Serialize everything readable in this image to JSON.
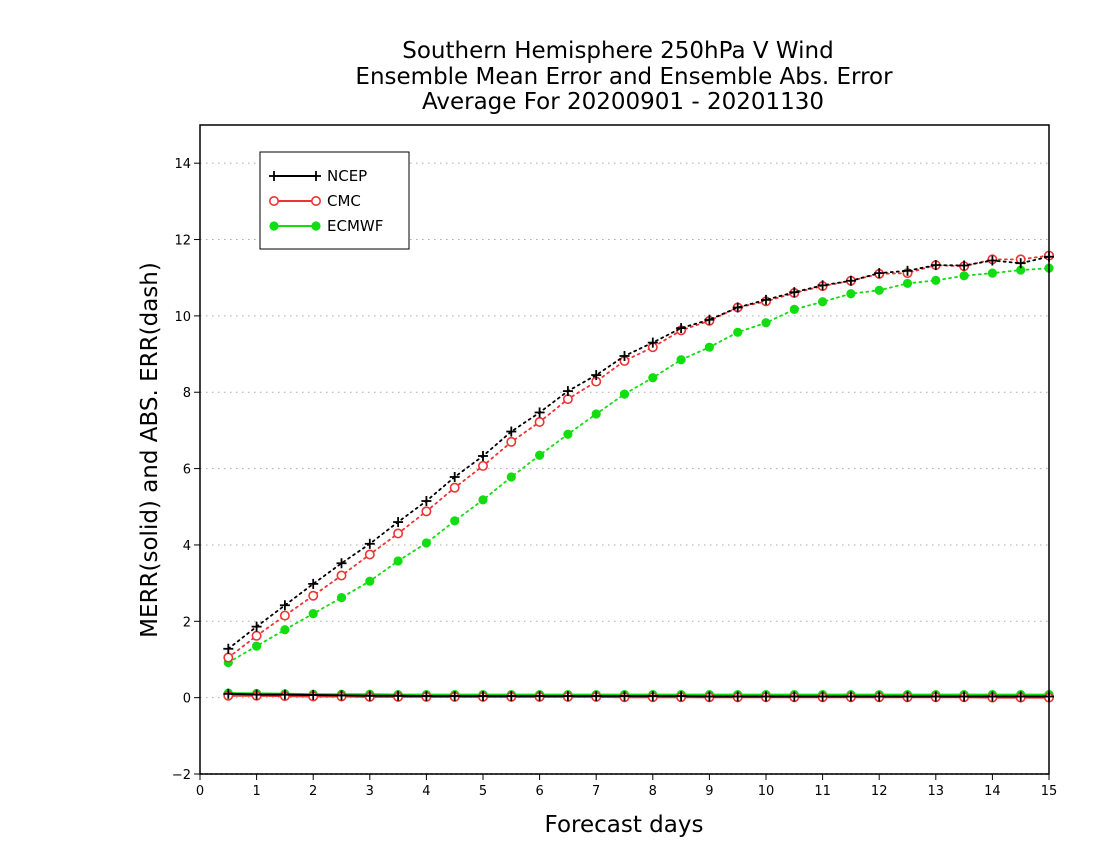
{
  "chart_data": {
    "type": "line",
    "title": [
      "Southern Hemisphere 250hPa V Wind",
      "Ensemble Mean Error and Ensemble Abs. Error",
      "Average For 20200901 - 20201130"
    ],
    "xlabel": "Forecast days",
    "ylabel": "MERR(solid) and ABS. ERR(dash)",
    "xlim": [
      0,
      15
    ],
    "ylim": [
      -2,
      15
    ],
    "xticks": [
      0,
      1,
      2,
      3,
      4,
      5,
      6,
      7,
      8,
      9,
      10,
      11,
      12,
      13,
      14,
      15
    ],
    "yticks": [
      -2,
      0,
      2,
      4,
      6,
      8,
      10,
      12,
      14
    ],
    "grid": "horizontal dotted",
    "legend_position": "top-left",
    "x": [
      0.5,
      1,
      1.5,
      2,
      2.5,
      3,
      3.5,
      4,
      4.5,
      5,
      5.5,
      6,
      6.5,
      7,
      7.5,
      8,
      8.5,
      9,
      9.5,
      10,
      10.5,
      11,
      11.5,
      12,
      12.5,
      13,
      13.5,
      14,
      14.5,
      15
    ],
    "series": [
      {
        "name": "NCEP",
        "color": "#000000",
        "marker": "plus",
        "abs_err": [
          1.28,
          1.86,
          2.42,
          2.98,
          3.52,
          4.03,
          4.6,
          5.15,
          5.78,
          6.33,
          6.97,
          7.47,
          8.03,
          8.45,
          8.95,
          9.3,
          9.68,
          9.9,
          10.22,
          10.42,
          10.62,
          10.8,
          10.92,
          11.12,
          11.18,
          11.33,
          11.32,
          11.45,
          11.38,
          11.55
        ],
        "mean_err": [
          0.1,
          0.08,
          0.08,
          0.07,
          0.06,
          0.05,
          0.05,
          0.04,
          0.04,
          0.04,
          0.04,
          0.04,
          0.04,
          0.04,
          0.04,
          0.04,
          0.04,
          0.03,
          0.03,
          0.03,
          0.03,
          0.03,
          0.03,
          0.03,
          0.03,
          0.03,
          0.03,
          0.03,
          0.03,
          0.03
        ]
      },
      {
        "name": "CMC",
        "color": "#ee3333",
        "marker": "open-circle",
        "abs_err": [
          1.05,
          1.62,
          2.15,
          2.67,
          3.2,
          3.75,
          4.3,
          4.88,
          5.5,
          6.07,
          6.7,
          7.22,
          7.82,
          8.28,
          8.82,
          9.18,
          9.62,
          9.87,
          10.22,
          10.38,
          10.6,
          10.78,
          10.92,
          11.1,
          11.12,
          11.33,
          11.3,
          11.48,
          11.48,
          11.58
        ],
        "mean_err": [
          0.05,
          0.05,
          0.04,
          0.03,
          0.03,
          0.02,
          0.02,
          0.02,
          0.02,
          0.02,
          0.02,
          0.02,
          0.02,
          0.02,
          0.01,
          0.01,
          0.01,
          0.01,
          0.01,
          0.01,
          0.01,
          0.01,
          0.01,
          0.01,
          0.01,
          0.01,
          0.01,
          0.0,
          0.0,
          0.0
        ]
      },
      {
        "name": "ECMWF",
        "color": "#11dd11",
        "marker": "filled-circle",
        "abs_err": [
          0.92,
          1.35,
          1.78,
          2.2,
          2.62,
          3.05,
          3.58,
          4.05,
          4.63,
          5.18,
          5.78,
          6.35,
          6.9,
          7.43,
          7.95,
          8.38,
          8.85,
          9.18,
          9.57,
          9.82,
          10.17,
          10.37,
          10.58,
          10.67,
          10.85,
          10.93,
          11.05,
          11.12,
          11.2,
          11.25
        ],
        "mean_err": [
          0.12,
          0.11,
          0.1,
          0.09,
          0.09,
          0.09,
          0.08,
          0.08,
          0.08,
          0.08,
          0.08,
          0.08,
          0.08,
          0.08,
          0.08,
          0.08,
          0.08,
          0.08,
          0.08,
          0.08,
          0.08,
          0.08,
          0.08,
          0.08,
          0.08,
          0.08,
          0.08,
          0.08,
          0.08,
          0.08
        ]
      }
    ]
  }
}
